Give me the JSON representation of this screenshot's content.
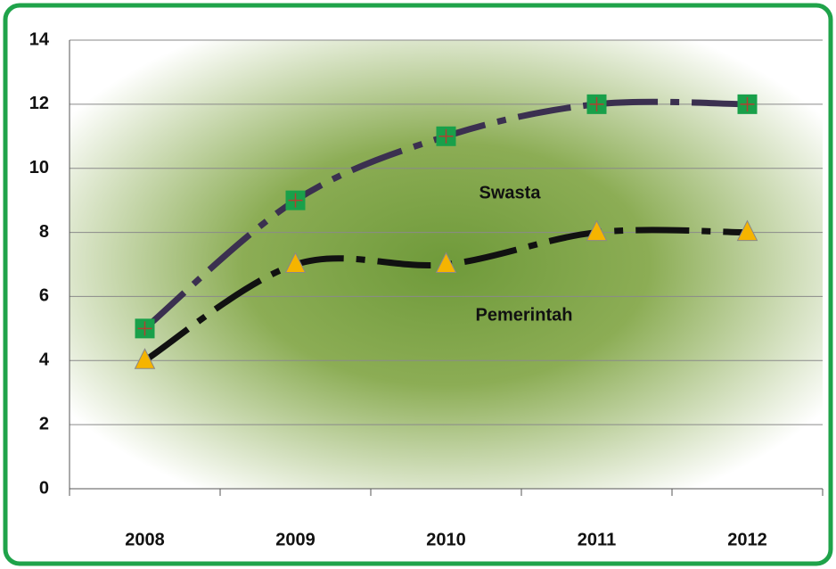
{
  "chart_data": {
    "type": "line",
    "categories": [
      "2008",
      "2009",
      "2010",
      "2011",
      "2012"
    ],
    "series": [
      {
        "name": "Swasta",
        "color": "#3b3050",
        "marker_color": "#19a04a",
        "marker": "square",
        "values": [
          5,
          9,
          11,
          12,
          12
        ]
      },
      {
        "name": "Pemerintah",
        "color": "#111111",
        "marker_color": "#f5b400",
        "marker": "triangle",
        "values": [
          4,
          7,
          7,
          8,
          8
        ]
      }
    ],
    "ylim": [
      0,
      14
    ],
    "yticks": [
      0,
      2,
      4,
      6,
      8,
      10,
      12,
      14
    ],
    "grid": true
  }
}
